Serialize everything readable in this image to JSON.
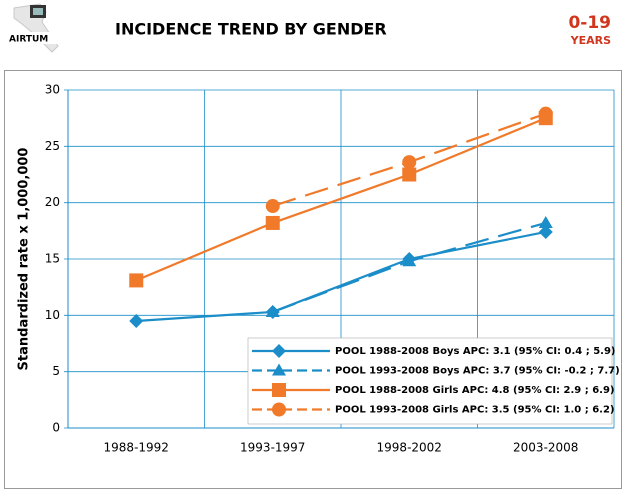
{
  "header": {
    "logo": "AIRTUM",
    "title": "INCIDENCE TREND BY GENDER",
    "age": "0-19",
    "age_unit": "YEARS"
  },
  "chart_data": {
    "type": "line",
    "ylabel": "Standardized rate x 1,000,000",
    "categories": [
      "1988-1992",
      "1993-1997",
      "1998-2002",
      "2003-2008"
    ],
    "ylim": [
      0,
      30
    ],
    "yticks": [
      0,
      5,
      10,
      15,
      20,
      25,
      30
    ],
    "grid": true,
    "legend": "lower right",
    "series": [
      {
        "name": "POOL 1988-2008 Boys APC: 3.1 (95% CI: 0.4 ; 5.9)",
        "color": "#1b8dc8",
        "marker": "diamond",
        "dashed": false,
        "values": [
          9.5,
          10.3,
          15.0,
          17.4
        ]
      },
      {
        "name": "POOL 1993-2008 Boys APC: 3.7 (95% CI: -0.2 ; 7.7)",
        "color": "#1b8dc8",
        "marker": "triangle",
        "dashed": true,
        "values": [
          null,
          10.3,
          14.8,
          18.2
        ]
      },
      {
        "name": "POOL 1988-2008 Girls APC: 4.8 (95% CI: 2.9 ; 6.9)",
        "color": "#f07a2a",
        "marker": "square",
        "dashed": false,
        "values": [
          13.1,
          18.2,
          22.5,
          27.5
        ]
      },
      {
        "name": "POOL 1993-2008 Girls APC: 3.5 (95% CI: 1.0 ; 6.2)",
        "color": "#f07a2a",
        "marker": "circle",
        "dashed": true,
        "values": [
          null,
          19.7,
          23.6,
          27.9
        ]
      }
    ]
  }
}
